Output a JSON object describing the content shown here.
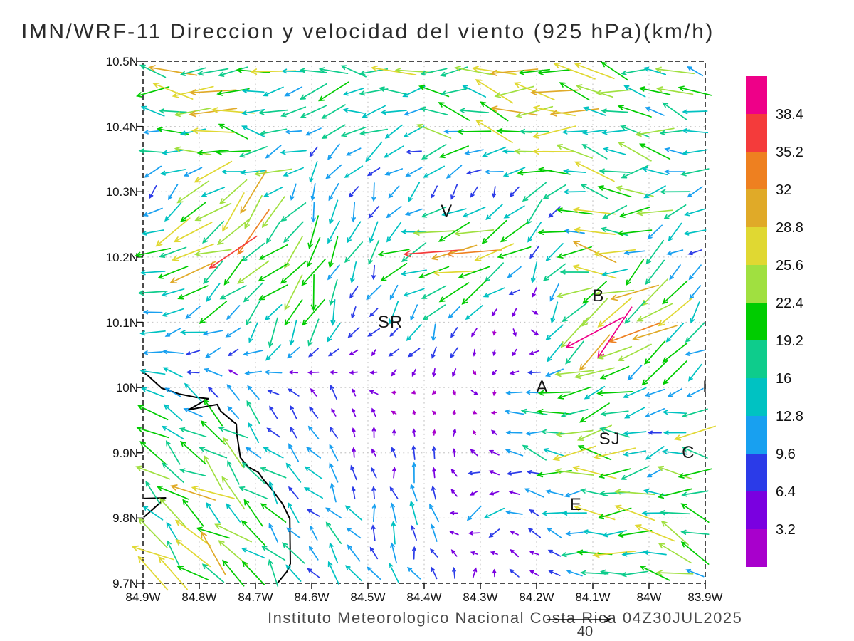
{
  "title": "IMN/WRF-11 Direccion y velocidad del viento (925 hPa)(km/h)",
  "footer": {
    "text": "Instituto Meteorologico Nacional Costa Rica 04Z30JUL2025",
    "reference_vector": {
      "label": "40",
      "value": 40,
      "units": "km/h"
    }
  },
  "chart_data": {
    "type": "quiver",
    "title": "IMN/WRF-11 Direccion y velocidad del viento (925 hPa)(km/h)",
    "level": "925 hPa",
    "units": "km/h",
    "grid": "dotted",
    "legend_position": "right",
    "x_ticks": [
      "84.9W",
      "84.8W",
      "84.7W",
      "84.6W",
      "84.5W",
      "84.4W",
      "84.3W",
      "84.2W",
      "84.1W",
      "84W",
      "83.9W"
    ],
    "y_ticks": [
      "10.5N",
      "10.4N",
      "10.3N",
      "10.2N",
      "10.1N",
      "10N",
      "9.9N",
      "9.8N",
      "9.7N"
    ],
    "lon_w_range": [
      84.9,
      83.9
    ],
    "lat_n_range": [
      10.5,
      9.7
    ],
    "colorbar": {
      "labels_top_to_bottom": [
        "38.4",
        "35.2",
        "32",
        "28.8",
        "25.6",
        "22.4",
        "19.2",
        "16",
        "12.8",
        "9.6",
        "6.4",
        "3.2"
      ],
      "levels_step": 3.2,
      "colors_low_to_high": [
        "#A800CC",
        "#7A00E0",
        "#2B3BE8",
        "#18A0F0",
        "#00C2C2",
        "#0ECC8C",
        "#00CC00",
        "#A0E040",
        "#E0D832",
        "#E0AA28",
        "#EE8020",
        "#F43B3B",
        "#EE0088"
      ]
    },
    "cities": [
      {
        "label": "V",
        "lon_w": 84.36,
        "lat_n": 10.27
      },
      {
        "label": "B",
        "lon_w": 84.09,
        "lat_n": 10.14
      },
      {
        "label": "SR",
        "lon_w": 84.46,
        "lat_n": 10.1
      },
      {
        "label": "A",
        "lon_w": 84.19,
        "lat_n": 10.0
      },
      {
        "label": "I",
        "lon_w": 83.9,
        "lat_n": 10.0
      },
      {
        "label": "SJ",
        "lon_w": 84.07,
        "lat_n": 9.92
      },
      {
        "label": "C",
        "lon_w": 83.93,
        "lat_n": 9.9
      },
      {
        "label": "E",
        "lon_w": 84.13,
        "lat_n": 9.82
      }
    ],
    "coastline_lonlat": [
      [
        84.899,
        10.023
      ],
      [
        84.891,
        10.018
      ],
      [
        84.867,
        9.999
      ],
      [
        84.835,
        9.99
      ],
      [
        84.806,
        9.985
      ],
      [
        84.784,
        9.983
      ],
      [
        84.819,
        9.966
      ],
      [
        84.768,
        9.974
      ],
      [
        84.762,
        9.964
      ],
      [
        84.743,
        9.95
      ],
      [
        84.734,
        9.944
      ],
      [
        84.733,
        9.928
      ],
      [
        84.727,
        9.893
      ],
      [
        84.714,
        9.879
      ],
      [
        84.695,
        9.87
      ],
      [
        84.686,
        9.859
      ],
      [
        84.671,
        9.844
      ],
      [
        84.652,
        9.822
      ],
      [
        84.639,
        9.799
      ],
      [
        84.638,
        9.73
      ],
      [
        84.644,
        9.718
      ],
      [
        84.661,
        9.7
      ]
    ],
    "coastline_spit_lonlat": [
      [
        84.899,
        9.83
      ],
      [
        84.86,
        9.831
      ],
      [
        84.899,
        9.801
      ]
    ],
    "wind_field": {
      "lons_w": [
        84.9,
        84.8,
        84.7,
        84.6,
        84.5,
        84.4,
        84.3,
        84.2,
        84.1,
        84.0,
        83.9
      ],
      "lats_n": [
        10.5,
        10.4,
        10.3,
        10.2,
        10.1,
        10.0,
        9.9,
        9.8,
        9.7
      ],
      "u_kmh": [
        [
          -30,
          -24,
          -22,
          -20,
          -22,
          -22,
          -20,
          -22,
          -20,
          -18,
          -16
        ],
        [
          -14,
          -22,
          -18,
          -10,
          -14,
          -18,
          -20,
          -24,
          -22,
          -18,
          -14
        ],
        [
          -8,
          -16,
          -18,
          -6,
          -4,
          -8,
          -4,
          -10,
          -20,
          -18,
          -12
        ],
        [
          -16,
          -28,
          -20,
          -6,
          -4,
          -28,
          -30,
          -8,
          -24,
          -12,
          -6
        ],
        [
          -13,
          -10,
          -12,
          -5,
          -3,
          -6,
          -4,
          6,
          -28,
          -20,
          -10
        ],
        [
          -12,
          -10,
          -8,
          -6,
          -3,
          -3,
          4,
          -16,
          -18,
          -14,
          -12
        ],
        [
          -14,
          -16,
          -10,
          -6,
          -2,
          2,
          -4,
          -14,
          -26,
          -8,
          -28
        ],
        [
          -16,
          -18,
          -12,
          -8,
          -4,
          -3,
          -10,
          -6,
          -20,
          -24,
          -16
        ],
        [
          -16,
          -20,
          -12,
          -8,
          -6,
          -4,
          2,
          -8,
          -14,
          -20,
          -10
        ]
      ],
      "v_kmh": [
        [
          0,
          0,
          2,
          -3,
          2,
          0,
          3,
          2,
          4,
          4,
          3
        ],
        [
          0,
          2,
          3,
          -5,
          -4,
          -2,
          5,
          4,
          5,
          5,
          4
        ],
        [
          -8,
          -12,
          -14,
          -10,
          -10,
          -6,
          -8,
          -10,
          2,
          -4,
          -6
        ],
        [
          -8,
          -10,
          -16,
          -20,
          -14,
          -4,
          -10,
          -10,
          2,
          -10,
          -6
        ],
        [
          -2,
          -8,
          -14,
          -16,
          -6,
          -14,
          -4,
          -3,
          -24,
          -18,
          -12
        ],
        [
          6,
          8,
          6,
          6,
          3,
          -3,
          -3,
          -2,
          -6,
          -4,
          -4
        ],
        [
          10,
          12,
          10,
          8,
          6,
          8,
          4,
          4,
          2,
          -4,
          0
        ],
        [
          12,
          14,
          12,
          10,
          10,
          12,
          -8,
          4,
          -2,
          4,
          8
        ],
        [
          14,
          16,
          12,
          10,
          8,
          10,
          6,
          2,
          8,
          6,
          6
        ]
      ]
    }
  }
}
